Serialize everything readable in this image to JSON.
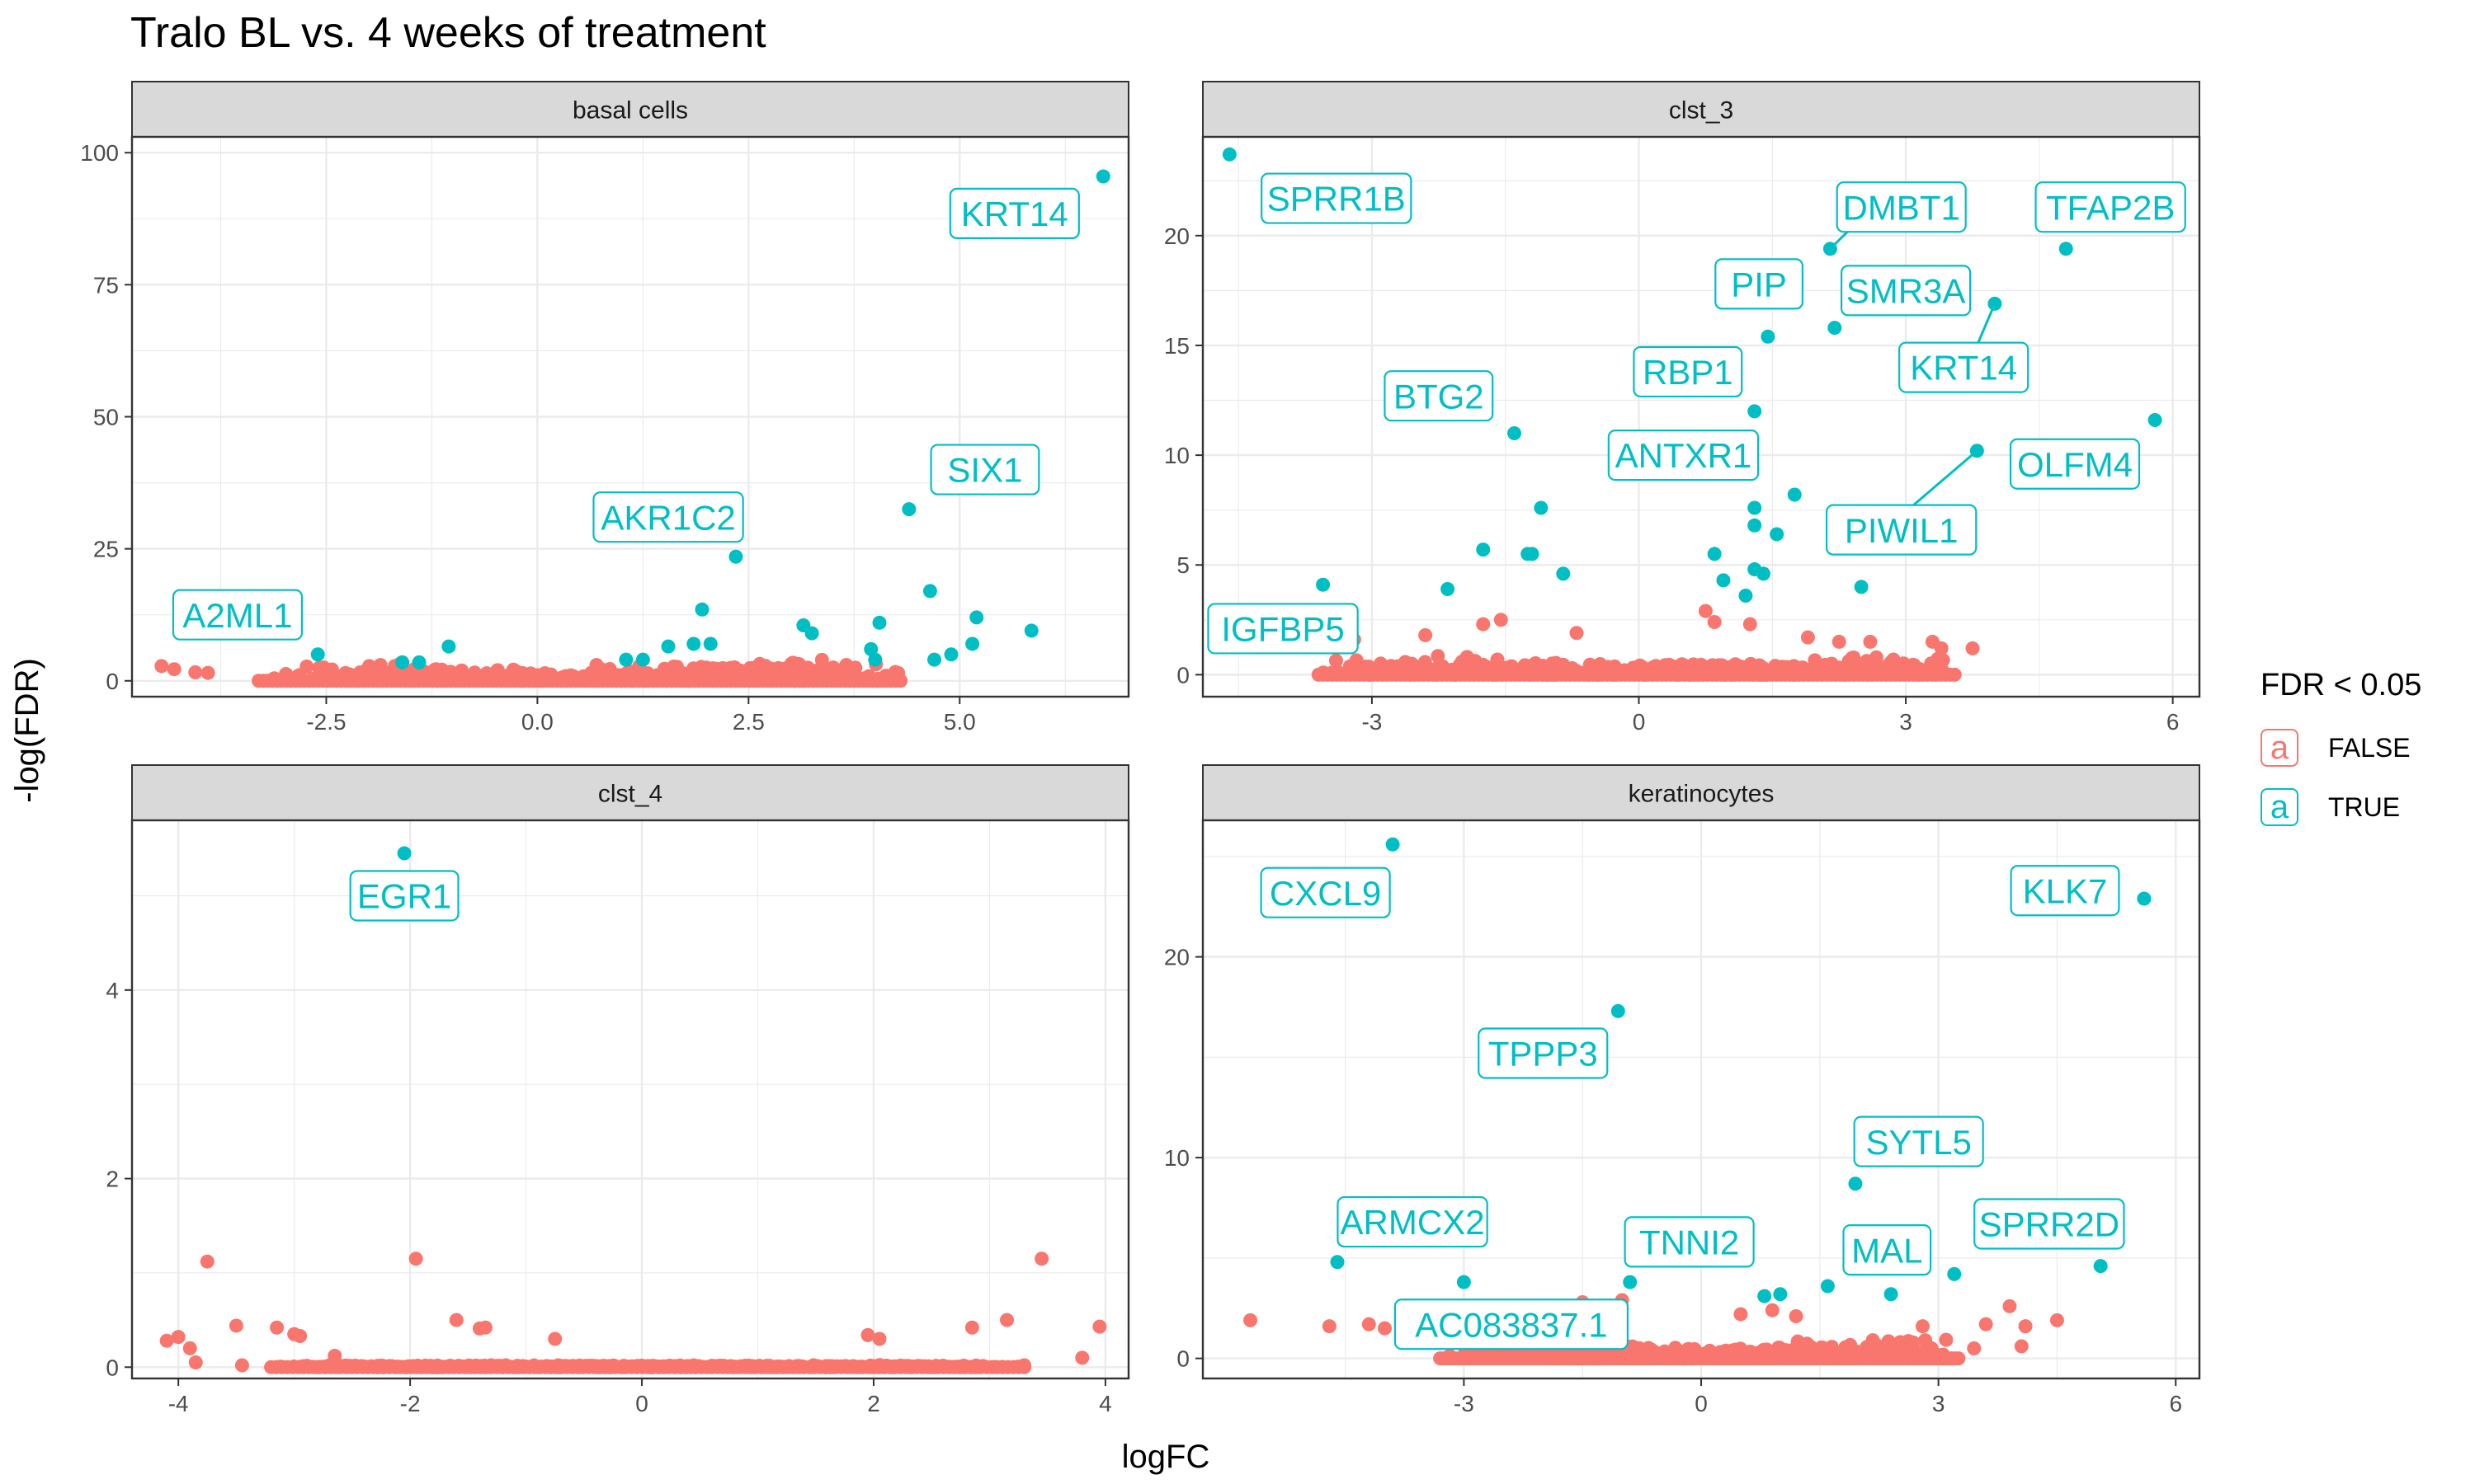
{
  "title": "Tralo BL vs. 4 weeks of treatment",
  "legend": {
    "title": "FDR < 0.05",
    "key_glyph": "a",
    "entries": [
      {
        "label": "FALSE",
        "color": "#F8766D"
      },
      {
        "label": "TRUE",
        "color": "#00BFC4"
      }
    ]
  },
  "colors": {
    "false": "#F8766D",
    "true": "#00BFC4",
    "strip_bg": "#D9D9D9",
    "grid": "#EBEBEB"
  },
  "chart_data": [
    {
      "type": "scatter",
      "facet": "basal cells",
      "xlabel": "logFC",
      "ylabel": "-log(FDR)",
      "xlim": [
        -4.8,
        7.0
      ],
      "ylim": [
        -3,
        103
      ],
      "xticks": [
        -2.5,
        0.0,
        2.5,
        5.0
      ],
      "xtick_labels": [
        "-2.5",
        "0.0",
        "2.5",
        "5.0"
      ],
      "yticks": [
        0,
        25,
        50,
        75,
        100
      ],
      "ytick_labels": [
        "0",
        "25",
        "50",
        "75",
        "100"
      ],
      "significant": [
        {
          "x": 6.7,
          "y": 95.5
        },
        {
          "x": 4.4,
          "y": 32.5
        },
        {
          "x": 2.35,
          "y": 23.5
        },
        {
          "x": 4.65,
          "y": 17
        },
        {
          "x": 1.95,
          "y": 13.5
        },
        {
          "x": 5.2,
          "y": 12
        },
        {
          "x": 4.05,
          "y": 11
        },
        {
          "x": 3.15,
          "y": 10.5
        },
        {
          "x": 3.25,
          "y": 9
        },
        {
          "x": 5.85,
          "y": 9.5
        },
        {
          "x": 5.15,
          "y": 7
        },
        {
          "x": 1.85,
          "y": 7
        },
        {
          "x": 2.05,
          "y": 7
        },
        {
          "x": 1.55,
          "y": 6.5
        },
        {
          "x": -1.05,
          "y": 6.5
        },
        {
          "x": 3.95,
          "y": 6
        },
        {
          "x": 4.9,
          "y": 5
        },
        {
          "x": -2.6,
          "y": 5
        },
        {
          "x": 4.0,
          "y": 4
        },
        {
          "x": 4.7,
          "y": 4
        },
        {
          "x": 1.05,
          "y": 4
        },
        {
          "x": 1.25,
          "y": 4
        },
        {
          "x": -1.6,
          "y": 3.5
        },
        {
          "x": -1.4,
          "y": 3.5
        }
      ],
      "nonsignificant_extra": [
        {
          "x": -4.45,
          "y": 2.8
        },
        {
          "x": -4.3,
          "y": 2.2
        },
        {
          "x": -4.05,
          "y": 1.6
        },
        {
          "x": -3.9,
          "y": 1.5
        },
        {
          "x": -2.0,
          "y": 2.5
        },
        {
          "x": -1.2,
          "y": 2.2
        },
        {
          "x": 0.7,
          "y": 3
        },
        {
          "x": 2.0,
          "y": 2.5
        },
        {
          "x": 3.6,
          "y": 2
        }
      ],
      "nonsig_range": [
        -3.3,
        4.3
      ],
      "labels": [
        {
          "text": "KRT14",
          "x": 5.65,
          "y": 88.5
        },
        {
          "text": "SIX1",
          "x": 5.3,
          "y": 40
        },
        {
          "text": "AKR1C2",
          "x": 1.55,
          "y": 31
        },
        {
          "text": "A2ML1",
          "x": -3.55,
          "y": 12.5
        }
      ]
    },
    {
      "type": "scatter",
      "facet": "clst_3",
      "xlabel": "logFC",
      "ylabel": "-log(FDR)",
      "xlim": [
        -4.9,
        6.3
      ],
      "ylim": [
        -1,
        24.5
      ],
      "xticks": [
        -3,
        0,
        3,
        6
      ],
      "xtick_labels": [
        "-3",
        "0",
        "3",
        "6"
      ],
      "yticks": [
        0,
        5,
        10,
        15,
        20
      ],
      "ytick_labels": [
        "0",
        "5",
        "10",
        "15",
        "20"
      ],
      "significant": [
        {
          "x": -4.6,
          "y": 23.7
        },
        {
          "x": 2.15,
          "y": 19.4
        },
        {
          "x": 4.8,
          "y": 19.4
        },
        {
          "x": 4.0,
          "y": 16.9
        },
        {
          "x": 1.45,
          "y": 15.4
        },
        {
          "x": 2.2,
          "y": 15.8
        },
        {
          "x": 1.3,
          "y": 12
        },
        {
          "x": -1.4,
          "y": 11
        },
        {
          "x": 5.8,
          "y": 11.6
        },
        {
          "x": 3.8,
          "y": 10.2
        },
        {
          "x": -1.1,
          "y": 7.6
        },
        {
          "x": 1.75,
          "y": 8.2
        },
        {
          "x": 1.3,
          "y": 7.6
        },
        {
          "x": 1.3,
          "y": 6.8
        },
        {
          "x": 1.55,
          "y": 6.4
        },
        {
          "x": -1.75,
          "y": 5.7
        },
        {
          "x": -1.2,
          "y": 5.5
        },
        {
          "x": -1.25,
          "y": 5.5
        },
        {
          "x": 0.85,
          "y": 5.5
        },
        {
          "x": -0.85,
          "y": 4.6
        },
        {
          "x": 1.3,
          "y": 4.8
        },
        {
          "x": 1.4,
          "y": 4.6
        },
        {
          "x": -3.55,
          "y": 4.1
        },
        {
          "x": -2.15,
          "y": 3.9
        },
        {
          "x": 0.95,
          "y": 4.3
        },
        {
          "x": 1.2,
          "y": 3.6
        },
        {
          "x": 2.5,
          "y": 4.0
        }
      ],
      "nonsignificant_extra": [
        {
          "x": -3.2,
          "y": 1.6
        },
        {
          "x": -2.4,
          "y": 1.8
        },
        {
          "x": -1.75,
          "y": 2.3
        },
        {
          "x": -1.55,
          "y": 2.5
        },
        {
          "x": -0.7,
          "y": 1.9
        },
        {
          "x": 0.75,
          "y": 2.9
        },
        {
          "x": 0.85,
          "y": 2.4
        },
        {
          "x": 1.25,
          "y": 2.3
        },
        {
          "x": 1.9,
          "y": 1.7
        },
        {
          "x": 2.25,
          "y": 1.5
        },
        {
          "x": 2.6,
          "y": 1.5
        },
        {
          "x": 3.3,
          "y": 1.5
        },
        {
          "x": 3.4,
          "y": 1.2
        },
        {
          "x": 3.75,
          "y": 1.2
        }
      ],
      "nonsig_range": [
        -3.6,
        3.6
      ],
      "labels": [
        {
          "text": "SPRR1B",
          "x": -3.4,
          "y": 21.7
        },
        {
          "text": "DMBT1",
          "x": 2.95,
          "y": 21.3
        },
        {
          "text": "TFAP2B",
          "x": 5.3,
          "y": 21.3
        },
        {
          "text": "PIP",
          "x": 1.35,
          "y": 17.8
        },
        {
          "text": "SMR3A",
          "x": 3.0,
          "y": 17.5
        },
        {
          "text": "BTG2",
          "x": -2.25,
          "y": 12.7
        },
        {
          "text": "RBP1",
          "x": 0.55,
          "y": 13.8
        },
        {
          "text": "KRT14",
          "x": 3.65,
          "y": 14
        },
        {
          "text": "ANTXR1",
          "x": 0.5,
          "y": 10
        },
        {
          "text": "OLFM4",
          "x": 4.9,
          "y": 9.6
        },
        {
          "text": "PIWIL1",
          "x": 2.95,
          "y": 6.6
        },
        {
          "text": "IGFBP5",
          "x": -4.0,
          "y": 2.1
        }
      ],
      "connectors": [
        {
          "from": [
            2.15,
            19.4
          ],
          "to": [
            2.5,
            20.8
          ]
        },
        {
          "from": [
            4.0,
            16.9
          ],
          "to": [
            3.8,
            15.0
          ]
        },
        {
          "from": [
            3.8,
            10.2
          ],
          "to": [
            3.05,
            7.6
          ]
        }
      ]
    },
    {
      "type": "scatter",
      "facet": "clst_4",
      "xlabel": "logFC",
      "ylabel": "-log(FDR)",
      "xlim": [
        -4.4,
        4.2
      ],
      "ylim": [
        -0.12,
        5.8
      ],
      "xticks": [
        -4,
        -2,
        0,
        2,
        4
      ],
      "xtick_labels": [
        "-4",
        "-2",
        "0",
        "2",
        "4"
      ],
      "yticks": [
        0,
        2,
        4
      ],
      "ytick_labels": [
        "0",
        "2",
        "4"
      ],
      "significant": [
        {
          "x": -2.05,
          "y": 5.45
        }
      ],
      "nonsignificant_extra": [
        {
          "x": -4.1,
          "y": 0.28
        },
        {
          "x": -4.0,
          "y": 0.32
        },
        {
          "x": -3.9,
          "y": 0.2
        },
        {
          "x": -3.85,
          "y": 0.05
        },
        {
          "x": -3.75,
          "y": 1.12
        },
        {
          "x": -3.5,
          "y": 0.44
        },
        {
          "x": -3.45,
          "y": 0.02
        },
        {
          "x": -3.15,
          "y": 0.42
        },
        {
          "x": -3.0,
          "y": 0.35
        },
        {
          "x": -2.95,
          "y": 0.33
        },
        {
          "x": -2.65,
          "y": 0.12
        },
        {
          "x": -1.95,
          "y": 1.15
        },
        {
          "x": -1.6,
          "y": 0.5
        },
        {
          "x": -1.4,
          "y": 0.41
        },
        {
          "x": -1.35,
          "y": 0.42
        },
        {
          "x": -0.75,
          "y": 0.3
        },
        {
          "x": 1.95,
          "y": 0.34
        },
        {
          "x": 2.05,
          "y": 0.3
        },
        {
          "x": 2.85,
          "y": 0.42
        },
        {
          "x": 3.15,
          "y": 0.5
        },
        {
          "x": 3.3,
          "y": 0.02
        },
        {
          "x": 3.45,
          "y": 1.15
        },
        {
          "x": 3.8,
          "y": 0.1
        },
        {
          "x": 3.95,
          "y": 0.43
        }
      ],
      "nonsig_range": [
        -3.2,
        3.3
      ],
      "labels": [
        {
          "text": "EGR1",
          "x": -2.05,
          "y": 5.0
        }
      ]
    },
    {
      "type": "scatter",
      "facet": "keratinocytes",
      "xlabel": "logFC",
      "ylabel": "-log(FDR)",
      "xlim": [
        -6.3,
        6.3
      ],
      "ylim": [
        -1,
        26.8
      ],
      "xticks": [
        -3,
        0,
        3,
        6
      ],
      "xtick_labels": [
        "-3",
        "0",
        "3",
        "6"
      ],
      "yticks": [
        0,
        10,
        20
      ],
      "ytick_labels": [
        "0",
        "10",
        "20"
      ],
      "significant": [
        {
          "x": -3.9,
          "y": 25.6
        },
        {
          "x": 5.6,
          "y": 22.9
        },
        {
          "x": -1.05,
          "y": 17.3
        },
        {
          "x": 1.95,
          "y": 8.7
        },
        {
          "x": -4.6,
          "y": 4.8
        },
        {
          "x": 5.05,
          "y": 4.6
        },
        {
          "x": 3.2,
          "y": 4.2
        },
        {
          "x": -3.0,
          "y": 3.8
        },
        {
          "x": -0.9,
          "y": 3.8
        },
        {
          "x": 1.6,
          "y": 3.6
        },
        {
          "x": 0.8,
          "y": 3.1
        },
        {
          "x": 1.0,
          "y": 3.2
        },
        {
          "x": 2.4,
          "y": 3.2
        }
      ],
      "nonsignificant_extra": [
        {
          "x": -5.7,
          "y": 1.9
        },
        {
          "x": -4.7,
          "y": 1.6
        },
        {
          "x": -4.2,
          "y": 1.7
        },
        {
          "x": -4.0,
          "y": 1.5
        },
        {
          "x": -2.0,
          "y": 2.5
        },
        {
          "x": -1.5,
          "y": 2.8
        },
        {
          "x": -1.0,
          "y": 2.9
        },
        {
          "x": 0.5,
          "y": 2.2
        },
        {
          "x": 0.9,
          "y": 2.4
        },
        {
          "x": 1.2,
          "y": 2.1
        },
        {
          "x": 2.8,
          "y": 1.6
        },
        {
          "x": 3.6,
          "y": 1.7
        },
        {
          "x": 3.9,
          "y": 2.6
        },
        {
          "x": 4.1,
          "y": 1.6
        },
        {
          "x": 4.5,
          "y": 1.9
        },
        {
          "x": 4.05,
          "y": 0.6
        },
        {
          "x": 3.45,
          "y": 0.5
        }
      ],
      "nonsig_range": [
        -3.3,
        3.3
      ],
      "labels": [
        {
          "text": "CXCL9",
          "x": -4.75,
          "y": 23.2
        },
        {
          "text": "KLK7",
          "x": 4.6,
          "y": 23.3
        },
        {
          "text": "TPPP3",
          "x": -2.0,
          "y": 15.2
        },
        {
          "text": "SYTL5",
          "x": 2.75,
          "y": 10.8
        },
        {
          "text": "ARMCX2",
          "x": -3.65,
          "y": 6.8
        },
        {
          "text": "TNNI2",
          "x": -0.15,
          "y": 5.8
        },
        {
          "text": "MAL",
          "x": 2.35,
          "y": 5.4
        },
        {
          "text": "SPRR2D",
          "x": 4.4,
          "y": 6.7
        },
        {
          "text": "AC083837.1",
          "x": -2.4,
          "y": 1.7
        }
      ]
    }
  ]
}
